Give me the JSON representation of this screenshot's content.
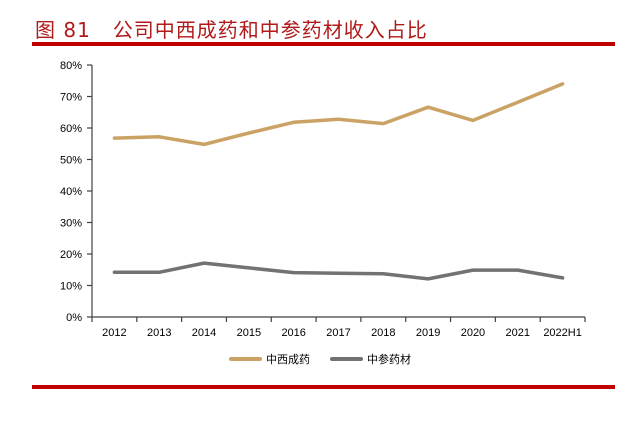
{
  "figure": {
    "number": "图 81",
    "title": "公司中西成药和中参药材收入占比"
  },
  "colors": {
    "accent_red": "#c00000",
    "series_1": "#c9a264",
    "series_2": "#727272"
  },
  "legend": {
    "items": [
      {
        "label": "中西成药",
        "color": "#c9a264"
      },
      {
        "label": "中参药材",
        "color": "#727272"
      }
    ]
  },
  "chart_data": {
    "type": "line",
    "title": "公司中西成药和中参药材收入占比",
    "xlabel": "",
    "ylabel": "",
    "categories": [
      "2012",
      "2013",
      "2014",
      "2015",
      "2016",
      "2017",
      "2018",
      "2019",
      "2020",
      "2021",
      "2022H1"
    ],
    "series": [
      {
        "name": "中西成药",
        "color": "#c9a264",
        "values": [
          56.8,
          57.2,
          54.8,
          58.4,
          61.8,
          62.8,
          61.4,
          66.6,
          62.4,
          68.2,
          74.0
        ]
      },
      {
        "name": "中参药材",
        "color": "#727272",
        "values": [
          14.2,
          14.2,
          17.1,
          15.6,
          14.1,
          13.9,
          13.7,
          12.1,
          14.9,
          14.9,
          12.4
        ]
      }
    ],
    "yticks": [
      "0%",
      "10%",
      "20%",
      "30%",
      "40%",
      "50%",
      "60%",
      "70%",
      "80%"
    ],
    "ylim": [
      0,
      80
    ],
    "grid": false,
    "legend_position": "bottom"
  }
}
